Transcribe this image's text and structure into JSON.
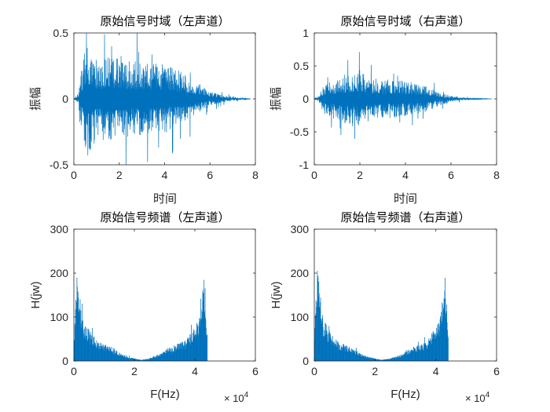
{
  "accent_color": "#0072BD",
  "chart_data": [
    {
      "type": "line",
      "title": "原始信号时域（左声道）",
      "xlabel": "时间",
      "ylabel": "振幅",
      "xlim": [
        0,
        8
      ],
      "ylim": [
        -0.5,
        0.5
      ],
      "xticks": [
        "0",
        "2",
        "4",
        "6",
        "8"
      ],
      "yticks": [
        "-0.5",
        "0",
        "0.5"
      ],
      "xtick_values": [
        0,
        2,
        4,
        6,
        8
      ],
      "ytick_values": [
        -0.5,
        0,
        0.5
      ],
      "grid": false,
      "envelope": {
        "t": [
          0.0,
          0.2,
          0.4,
          0.6,
          0.8,
          1.0,
          1.5,
          2.0,
          2.5,
          3.0,
          3.5,
          4.0,
          4.5,
          5.0,
          5.5,
          6.0,
          6.5,
          7.0,
          7.5,
          7.8
        ],
        "amp": [
          0.0,
          0.05,
          0.3,
          0.45,
          0.38,
          0.3,
          0.32,
          0.33,
          0.3,
          0.28,
          0.27,
          0.26,
          0.23,
          0.18,
          0.12,
          0.06,
          0.03,
          0.015,
          0.005,
          0.0
        ]
      }
    },
    {
      "type": "line",
      "title": "原始信号时域（右声道）",
      "xlabel": "时间",
      "ylabel": "振幅",
      "xlim": [
        0,
        8
      ],
      "ylim": [
        -1,
        1
      ],
      "xticks": [
        "0",
        "2",
        "4",
        "6",
        "8"
      ],
      "yticks": [
        "-1",
        "-0.5",
        "0",
        "0.5",
        "1"
      ],
      "xtick_values": [
        0,
        2,
        4,
        6,
        8
      ],
      "ytick_values": [
        -1,
        -0.5,
        0,
        0.5,
        1
      ],
      "grid": false,
      "envelope": {
        "t": [
          0.0,
          0.2,
          0.4,
          0.6,
          0.8,
          1.0,
          1.5,
          2.0,
          2.5,
          3.0,
          3.5,
          4.0,
          4.5,
          5.0,
          5.5,
          6.0,
          6.5,
          7.0,
          7.5,
          7.8
        ],
        "amp": [
          0.0,
          0.05,
          0.2,
          0.35,
          0.3,
          0.3,
          0.4,
          0.45,
          0.32,
          0.3,
          0.3,
          0.27,
          0.24,
          0.18,
          0.1,
          0.05,
          0.025,
          0.012,
          0.004,
          0.0
        ]
      }
    },
    {
      "type": "bar",
      "title": "原始信号频谱（左声道）",
      "xlabel": "F(Hz)",
      "ylabel": "H(jw)",
      "x_exponent_label": "× 10",
      "x_exponent_power": "4",
      "xlim": [
        0,
        6
      ],
      "ylim": [
        0,
        300
      ],
      "xticks": [
        "0",
        "2",
        "4",
        "6"
      ],
      "yticks": [
        "0",
        "100",
        "200",
        "300"
      ],
      "xtick_values": [
        0,
        2,
        4,
        6
      ],
      "ytick_values": [
        0,
        100,
        200,
        300
      ],
      "grid": false,
      "x_units": "×10^4 Hz",
      "spectrum": {
        "f": [
          0.0,
          0.1,
          0.2,
          0.3,
          0.5,
          0.7,
          1.0,
          1.3,
          1.6,
          2.0,
          2.205,
          2.4,
          2.8,
          3.1,
          3.4,
          3.7,
          3.9,
          4.1,
          4.2,
          4.3,
          4.4,
          4.41
        ],
        "mag": [
          60,
          200,
          150,
          95,
          75,
          50,
          40,
          30,
          15,
          6,
          3,
          5,
          14,
          29,
          39,
          48,
          68,
          95,
          145,
          200,
          80,
          60
        ]
      },
      "end_f": 4.41
    },
    {
      "type": "bar",
      "title": "原始信号频谱（右声道）",
      "xlabel": "F(Hz)",
      "ylabel": "H(jw)",
      "x_exponent_label": "× 10",
      "x_exponent_power": "4",
      "xlim": [
        0,
        6
      ],
      "ylim": [
        0,
        300
      ],
      "xticks": [
        "0",
        "2",
        "4",
        "6"
      ],
      "yticks": [
        "0",
        "100",
        "200",
        "300"
      ],
      "xtick_values": [
        0,
        2,
        4,
        6
      ],
      "ytick_values": [
        0,
        100,
        200,
        300
      ],
      "grid": false,
      "x_units": "×10^4 Hz",
      "spectrum": {
        "f": [
          0.0,
          0.1,
          0.2,
          0.3,
          0.5,
          0.7,
          1.0,
          1.3,
          1.6,
          2.0,
          2.205,
          2.4,
          2.8,
          3.1,
          3.4,
          3.7,
          3.9,
          4.1,
          4.2,
          4.3,
          4.4,
          4.41
        ],
        "mag": [
          60,
          210,
          150,
          95,
          70,
          50,
          38,
          28,
          14,
          6,
          3,
          5,
          13,
          27,
          37,
          46,
          68,
          95,
          145,
          210,
          80,
          60
        ]
      },
      "end_f": 4.41
    }
  ]
}
